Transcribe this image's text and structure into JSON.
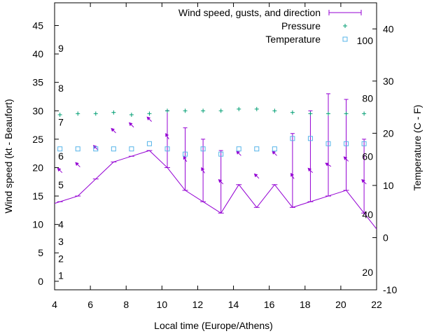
{
  "chart_data": {
    "type": "line",
    "xlabel": "Local time (Europe/Athens)",
    "ylabel_left": "Wind speed (kt - Beaufort)",
    "ylabel_right": "Temperature (C - F)",
    "xlim": [
      4,
      22
    ],
    "ylim_left": [
      -1.5,
      49
    ],
    "ylim_right": [
      -10,
      45
    ],
    "x_ticks": [
      "4",
      "6",
      "8",
      "10",
      "12",
      "14",
      "16",
      "18",
      "20",
      "22"
    ],
    "y_left_ticks": [
      "0",
      "5",
      "10",
      "15",
      "20",
      "25",
      "30",
      "35",
      "40",
      "45"
    ],
    "y_right_ticks": [
      "-10",
      "0",
      "10",
      "20",
      "30",
      "40"
    ],
    "beaufort_labels": [
      {
        "label": "1",
        "kt": 1
      },
      {
        "label": "2",
        "kt": 4
      },
      {
        "label": "3",
        "kt": 7
      },
      {
        "label": "4",
        "kt": 10
      },
      {
        "label": "5",
        "kt": 17
      },
      {
        "label": "6",
        "kt": 22
      },
      {
        "label": "7",
        "kt": 28
      },
      {
        "label": "8",
        "kt": 34
      },
      {
        "label": "9",
        "kt": 41
      }
    ],
    "fahrenheit_labels": [
      {
        "label": "20",
        "c": -6.67
      },
      {
        "label": "40",
        "c": 4.44
      },
      {
        "label": "60",
        "c": 15.56
      },
      {
        "label": "80",
        "c": 26.67
      },
      {
        "label": "100",
        "c": 37.78
      }
    ],
    "legend": {
      "wind": "Wind speed, gusts, and direction",
      "pressure": "Pressure",
      "temperature": "Temperature"
    },
    "series": {
      "wind": {
        "x": [
          4.3,
          5.3,
          6.3,
          7.3,
          8.3,
          9.3,
          10.3,
          11.3,
          12.3,
          13.3,
          14.3,
          15.3,
          16.3,
          17.3,
          18.3,
          19.3,
          20.3,
          21.3
        ],
        "speed": [
          14,
          15,
          18,
          21,
          22,
          23,
          20,
          16,
          14,
          12,
          17,
          13,
          17,
          13,
          14,
          15,
          16,
          12
        ],
        "gust": [
          null,
          null,
          null,
          null,
          null,
          null,
          30,
          27,
          25,
          23,
          null,
          null,
          null,
          26,
          30,
          33,
          32,
          25
        ],
        "direction_deg": [
          315,
          315,
          315,
          315,
          315,
          315,
          330,
          330,
          330,
          315,
          315,
          315,
          315,
          330,
          315,
          300,
          315,
          315
        ]
      },
      "pressure_y_kt": {
        "x": [
          4.3,
          5.3,
          6.3,
          7.3,
          8.3,
          9.3,
          10.3,
          11.3,
          12.3,
          13.3,
          14.3,
          15.3,
          16.3,
          17.3,
          18.3,
          19.3,
          20.3,
          21.3
        ],
        "values": [
          29.3,
          29.5,
          29.5,
          29.7,
          29.3,
          29.5,
          30.0,
          30.0,
          30.0,
          30.0,
          30.3,
          30.3,
          30.0,
          29.7,
          29.5,
          29.5,
          29.5,
          29.5
        ]
      },
      "temperature_c": {
        "x": [
          4.3,
          5.3,
          6.3,
          7.3,
          8.3,
          9.3,
          10.3,
          11.3,
          12.3,
          13.3,
          14.3,
          15.3,
          16.3,
          17.3,
          18.3,
          19.3,
          20.3,
          21.3
        ],
        "values": [
          17,
          17,
          17,
          17,
          17,
          18,
          17,
          16,
          17,
          16,
          17,
          17,
          17,
          19,
          19,
          18,
          18,
          18
        ]
      }
    }
  },
  "colors": {
    "wind": "#9400d3",
    "pressure": "#009e73",
    "temperature": "#56b4e9",
    "axis": "#000000"
  }
}
